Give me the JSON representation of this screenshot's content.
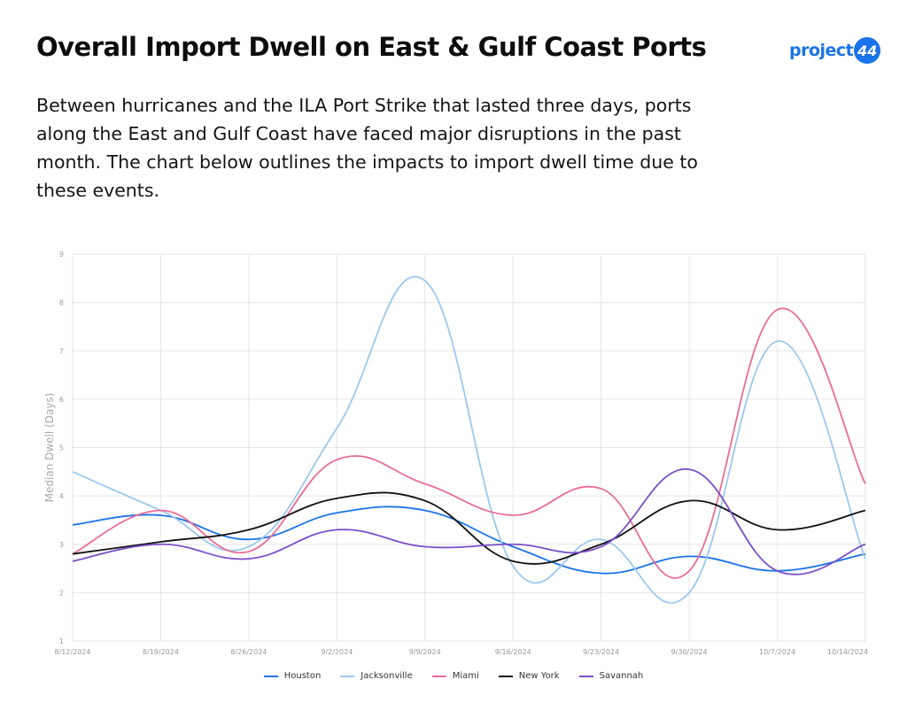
{
  "header": {
    "title": "Overall Import Dwell on East & Gulf Coast Ports",
    "logo_text": "project",
    "logo_badge": "44",
    "description": "Between hurricanes and the ILA Port Strike that lasted three days, ports along the East and Gulf Coast have faced major disruptions in the past month. The chart below outlines the impacts to import dwell time due to these events."
  },
  "colors": {
    "brand": "#1a73e8",
    "grid": "#e6e6e6"
  },
  "chart_data": {
    "type": "line",
    "title": "",
    "xlabel": "",
    "ylabel": "Median Dwell (Days)",
    "ylim": [
      1,
      9
    ],
    "yticks": [
      1,
      2,
      3,
      4,
      5,
      6,
      7,
      8,
      9
    ],
    "grid": true,
    "legend_position": "bottom",
    "categories": [
      "8/12/2024",
      "8/19/2024",
      "8/26/2024",
      "9/2/2024",
      "9/9/2024",
      "9/16/2024",
      "9/23/2024",
      "9/30/2024",
      "10/7/2024",
      "10/14/2024"
    ],
    "series": [
      {
        "name": "Houston",
        "color": "#1a73e8",
        "values": [
          3.4,
          3.6,
          3.1,
          3.65,
          3.7,
          2.95,
          2.4,
          2.75,
          2.45,
          2.8
        ]
      },
      {
        "name": "Jacksonville",
        "color": "#9cc8ef",
        "values": [
          4.5,
          3.7,
          2.95,
          5.4,
          8.45,
          2.55,
          3.1,
          2.0,
          7.2,
          2.7
        ]
      },
      {
        "name": "Miami",
        "color": "#ea6d96",
        "values": [
          2.8,
          3.7,
          2.85,
          4.75,
          4.25,
          3.6,
          4.15,
          2.45,
          7.85,
          4.25
        ]
      },
      {
        "name": "New York",
        "color": "#111111",
        "values": [
          2.8,
          3.05,
          3.3,
          3.95,
          3.9,
          2.65,
          3.0,
          3.9,
          3.3,
          3.7
        ]
      },
      {
        "name": "Savannah",
        "color": "#7a4fc9",
        "values": [
          2.65,
          3.0,
          2.7,
          3.3,
          2.95,
          3.0,
          2.95,
          4.55,
          2.45,
          3.0
        ]
      }
    ]
  }
}
